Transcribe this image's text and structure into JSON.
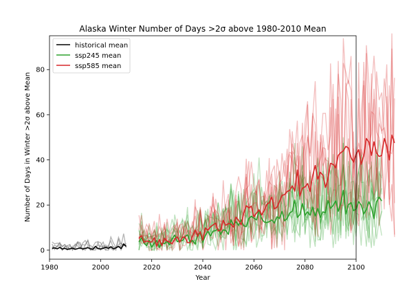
{
  "chart_data": {
    "type": "line",
    "title": "Alaska Winter Number of Days >2σ above 1980-2010 Mean",
    "xlabel": "Year",
    "ylabel": "Number of Days in Winter >2σ above Mean",
    "xlim": [
      1980,
      2100
    ],
    "ylim": [
      -4,
      95
    ],
    "xticks": [
      1980,
      2000,
      2020,
      2040,
      2060,
      2080,
      2100
    ],
    "yticks": [
      0,
      20,
      40,
      60,
      80
    ],
    "grid": false,
    "legend_position": "top-left",
    "colors": {
      "historical": "#000000",
      "ssp245": "#2ca02c",
      "ssp585": "#d62728"
    },
    "series": [
      {
        "name": "historical mean",
        "color": "#000000",
        "x_start": 1981,
        "values": [
          0.8,
          1.0,
          0.6,
          1.2,
          0.5,
          0.8,
          0.3,
          0.6,
          0.9,
          0.4,
          0.7,
          1.0,
          0.5,
          0.8,
          1.1,
          0.6,
          0.4,
          1.7,
          0.7,
          0.5,
          0.8,
          1.3,
          0.8,
          1.5,
          0.6,
          1.0,
          1.7,
          0.7,
          2.8,
          1.6
        ]
      },
      {
        "name": "ssp245 mean",
        "color": "#2ca02c",
        "x_start": 2015,
        "values": [
          3.6,
          5.4,
          3.1,
          2.0,
          4.4,
          1.3,
          3.1,
          4.3,
          1.2,
          3.2,
          2.9,
          3.8,
          2.4,
          5.0,
          6.7,
          3.8,
          4.1,
          4.2,
          5.9,
          6.8,
          3.6,
          4.3,
          2.7,
          7.1,
          7.5,
          3.6,
          6.4,
          8.5,
          6.3,
          8.4,
          8.7,
          9.4,
          7.0,
          9.0,
          8.7,
          7.0,
          13.5,
          11.2,
          12.6,
          11.0,
          13.4,
          10.8,
          10.4,
          14.0,
          15.0,
          14.2,
          13.4,
          17.9,
          14.0,
          12.5,
          12.2,
          12.6,
          13.4,
          12.0,
          14.8,
          14.0,
          17.2,
          13.0,
          14.0,
          16.5,
          17.2,
          22.2,
          14.5,
          15.8,
          20.6,
          15.5,
          17.0,
          15.5,
          19.0,
          15.2,
          18.5,
          14.5,
          17.0,
          16.5,
          22.0,
          18.5,
          19.8,
          21.8,
          17.2,
          20.8,
          26.5,
          16.0,
          20.2,
          21.0,
          17.5,
          18.2,
          21.5,
          20.0,
          16.0,
          18.0,
          21.5,
          18.8,
          14.0,
          21.5,
          23.5,
          21.8
        ]
      },
      {
        "name": "ssp585 mean",
        "color": "#d62728",
        "x_start": 2015,
        "values": [
          5.2,
          6.4,
          3.4,
          4.1,
          3.7,
          3.6,
          5.5,
          1.8,
          4.7,
          2.1,
          5.2,
          4.1,
          3.6,
          2.8,
          5.0,
          5.9,
          3.6,
          5.6,
          6.0,
          3.3,
          3.3,
          6.2,
          8.9,
          6.1,
          8.2,
          4.4,
          9.9,
          8.8,
          10.3,
          11.2,
          12.0,
          8.5,
          9.0,
          13.2,
          11.0,
          11.8,
          11.5,
          10.2,
          14.6,
          13.2,
          11.3,
          16.3,
          19.7,
          18.8,
          19.5,
          14.8,
          16.4,
          17.8,
          15.6,
          17.5,
          20.2,
          21.0,
          23.5,
          18.3,
          19.0,
          21.5,
          24.3,
          24.6,
          26.0,
          26.5,
          28.5,
          26.2,
          35.5,
          24.0,
          27.5,
          28.0,
          29.5,
          26.0,
          33.0,
          37.5,
          31.5,
          34.5,
          33.2,
          27.8,
          31.5,
          38.5,
          38.0,
          36.5,
          42.0,
          43.2,
          44.0,
          46.0,
          45.3,
          41.0,
          39.0,
          42.5,
          44.5,
          38.0,
          42.0,
          49.5,
          47.8,
          42.0,
          48.0,
          43.0,
          41.5,
          42.0,
          49.5,
          46.0,
          40.0,
          51.0,
          47.5
        ]
      }
    ]
  }
}
